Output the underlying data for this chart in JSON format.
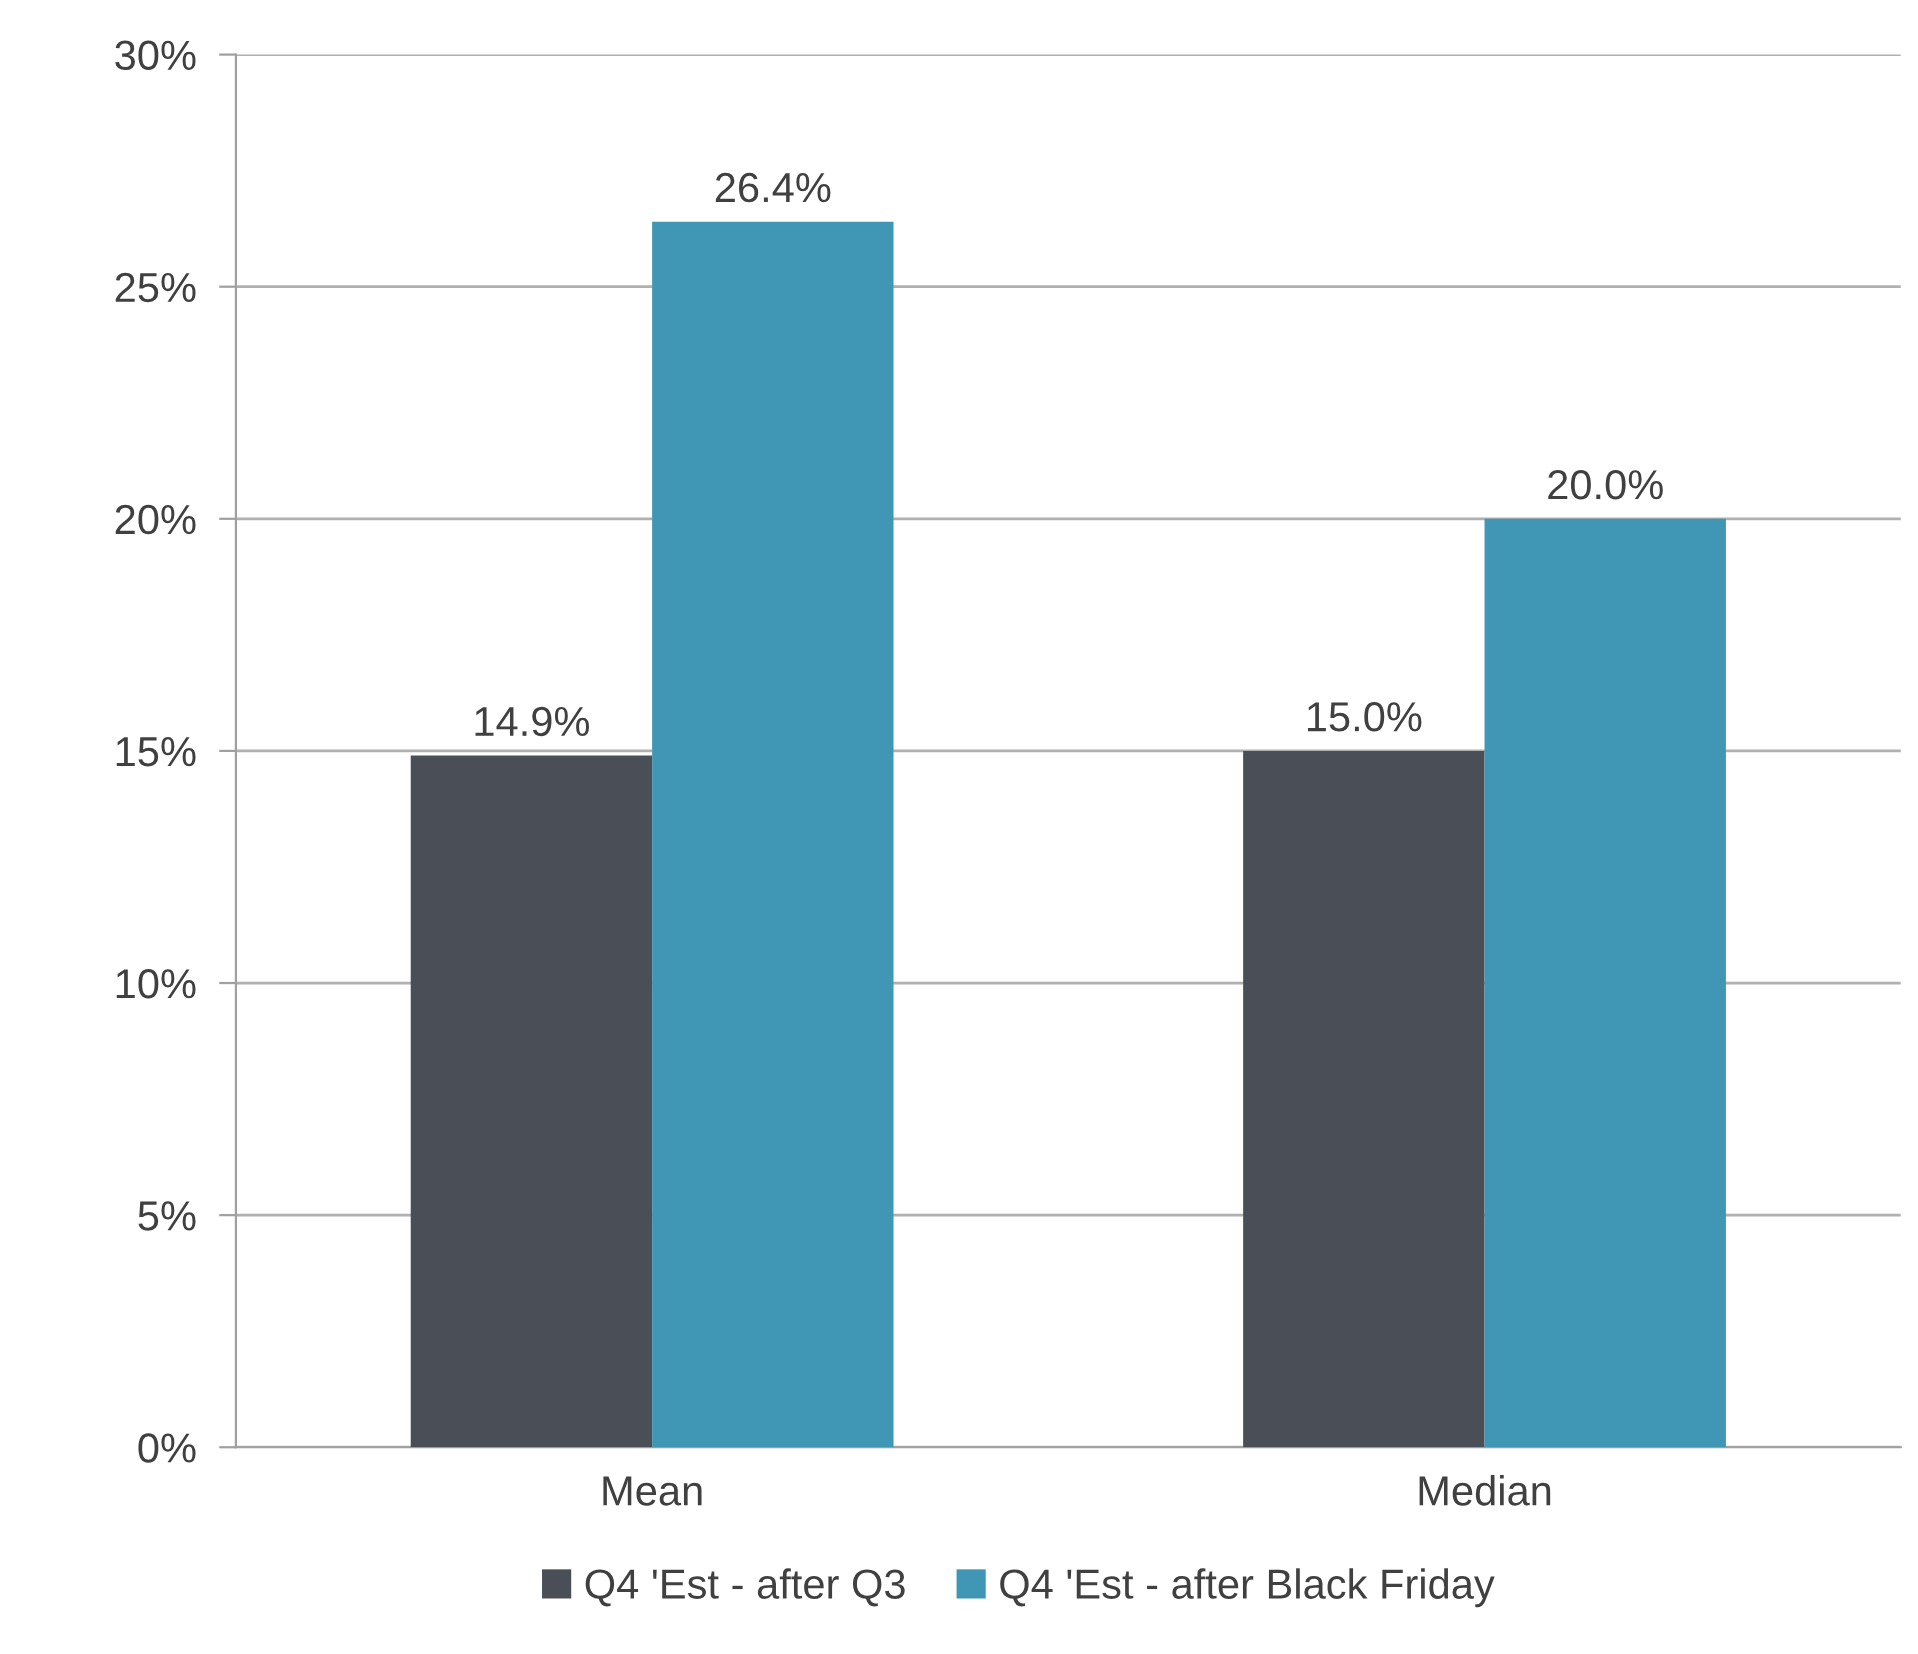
{
  "chart_data": {
    "type": "bar",
    "categories": [
      "Mean",
      "Median"
    ],
    "series": [
      {
        "name": "Q4 'Est - after Q3",
        "color": "#4a4e57",
        "values": [
          14.9,
          15.0
        ],
        "value_labels": [
          "14.9%",
          "15.0%"
        ]
      },
      {
        "name": "Q4 'Est - after Black Friday",
        "color": "#3f97b5",
        "values": [
          26.4,
          20.0
        ],
        "value_labels": [
          "26.4%",
          "20.0%"
        ]
      }
    ],
    "ylim": [
      0,
      30
    ],
    "yticks": [
      {
        "value": 0,
        "label": "0%"
      },
      {
        "value": 5,
        "label": "5%"
      },
      {
        "value": 10,
        "label": "10%"
      },
      {
        "value": 15,
        "label": "15%"
      },
      {
        "value": 20,
        "label": "20%"
      },
      {
        "value": 25,
        "label": "25%"
      },
      {
        "value": 30,
        "label": "30%"
      }
    ],
    "grid": "y",
    "legend": "bottom"
  }
}
